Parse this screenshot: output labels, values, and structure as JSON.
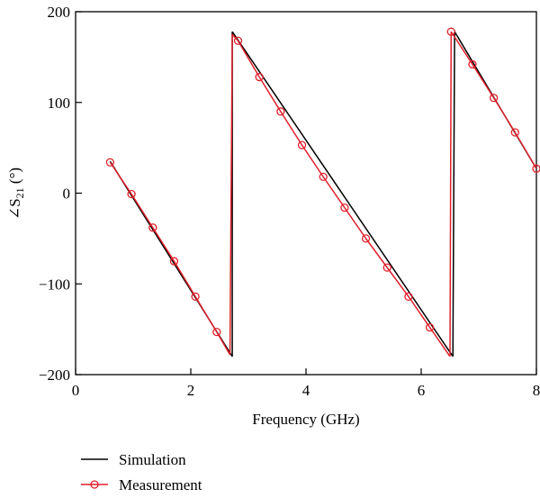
{
  "chart_data": {
    "type": "line",
    "xlabel": "Frequency (GHz)",
    "ylabel": "∠S21 (°)",
    "ylabel_parts": {
      "angle": "∠S",
      "subscript": "21",
      "unit": " (°)"
    },
    "xlim": [
      0,
      8
    ],
    "ylim": [
      -200,
      200
    ],
    "xticks": [
      0,
      2,
      4,
      6,
      8
    ],
    "yticks": [
      -200,
      -100,
      0,
      100,
      200
    ],
    "ytick_labels": [
      "−200",
      "−100",
      "0",
      "100",
      "200"
    ],
    "grid": false,
    "legend_position": "bottom-left",
    "series": [
      {
        "name": "Simulation",
        "color": "#000000",
        "marker": "none",
        "segments": [
          {
            "x": [
              0.6,
              2.72
            ],
            "y": [
              35,
              -180
            ]
          },
          {
            "x": [
              2.72,
              2.72
            ],
            "y": [
              -180,
              178
            ]
          },
          {
            "x": [
              2.72,
              6.55
            ],
            "y": [
              178,
              -180
            ]
          },
          {
            "x": [
              6.55,
              6.58
            ],
            "y": [
              -180,
              178
            ]
          },
          {
            "x": [
              6.58,
              8.0
            ],
            "y": [
              178,
              27
            ]
          }
        ]
      },
      {
        "name": "Measurement",
        "color": "#e0202a",
        "marker": "circle",
        "segments": [
          {
            "x": [
              0.6,
              0.97,
              1.34,
              1.71,
              2.08,
              2.45,
              2.68
            ],
            "y": [
              34,
              -1,
              -38,
              -75,
              -114,
              -153,
              -178
            ]
          },
          {
            "x": [
              2.68,
              2.72
            ],
            "y": [
              -178,
              175
            ]
          },
          {
            "x": [
              2.72,
              2.82,
              3.19,
              3.56,
              3.93,
              4.3,
              4.67,
              5.04,
              5.41,
              5.78,
              6.15,
              6.5
            ],
            "y": [
              175,
              168,
              128,
              90,
              53,
              18,
              -16,
              -50,
              -82,
              -114,
              -148,
              -180
            ]
          },
          {
            "x": [
              6.5,
              6.52
            ],
            "y": [
              -180,
              178
            ]
          },
          {
            "x": [
              6.52,
              6.89,
              7.26,
              7.63,
              8.0
            ],
            "y": [
              178,
              142,
              105,
              67,
              27
            ]
          }
        ],
        "markers": {
          "x": [
            0.6,
            0.97,
            1.34,
            1.71,
            2.08,
            2.45,
            2.82,
            3.19,
            3.56,
            3.93,
            4.3,
            4.67,
            5.04,
            5.41,
            5.78,
            6.15,
            6.52,
            6.89,
            7.26,
            7.63,
            8.0
          ],
          "y": [
            34,
            -1,
            -38,
            -75,
            -114,
            -153,
            168,
            128,
            90,
            53,
            18,
            -16,
            -50,
            -82,
            -114,
            -148,
            178,
            142,
            105,
            67,
            27
          ]
        }
      }
    ]
  }
}
